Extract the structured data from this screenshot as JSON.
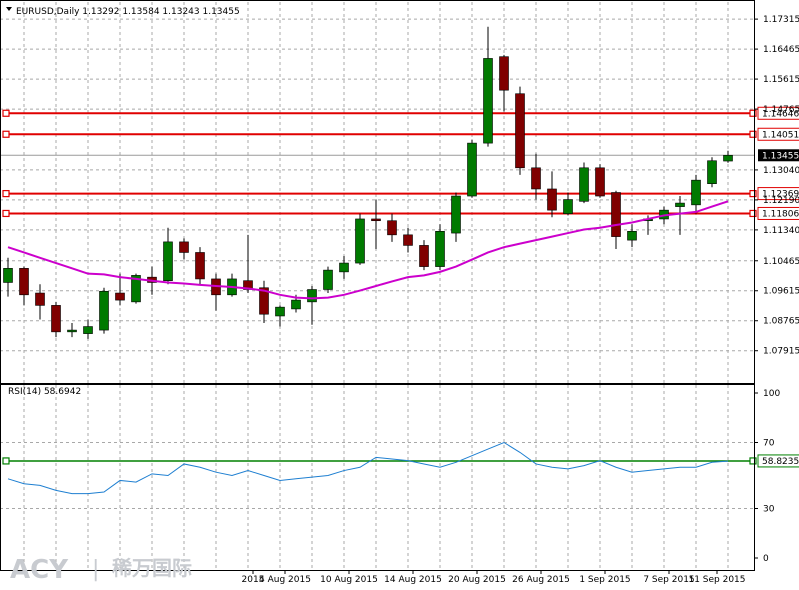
{
  "header": {
    "title": "EURUSD,Daily  1.13292 1.13584 1.13243 1.13455"
  },
  "logo": {
    "brand": "ACY",
    "separator": "|",
    "chinese": "稀万国际"
  },
  "colors": {
    "bull": "#007a00",
    "bear": "#800000",
    "ma": "#cc00cc",
    "rsi": "#1e7fd1",
    "level": "#e00000",
    "rsi_level": "#008000",
    "grid": "#a8a8a8"
  },
  "chart_data": [
    {
      "type": "candlestick",
      "symbol": "EURUSD",
      "timeframe": "Daily",
      "ohlc_header": {
        "open": 1.13292,
        "high": 1.13584,
        "low": 1.13243,
        "close": 1.13455
      },
      "ylim": [
        1.07,
        1.178
      ],
      "y_ticks": [
        "1.17315",
        "1.16465",
        "1.15615",
        "1.14765",
        "1.13040",
        "1.12190",
        "1.11340",
        "1.10465",
        "1.09615",
        "1.08765",
        "1.07915"
      ],
      "x_ticks": [
        "31 Jul 2015",
        "4 Aug 2015",
        "10 Aug 2015",
        "14 Aug 2015",
        "20 Aug 2015",
        "26 Aug 2015",
        "1 Sep 2015",
        "7 Sep 2015",
        "11 Sep 2015"
      ],
      "x_tick_labels_shown": [
        "2015",
        "4 Aug 2015",
        "10 Aug 2015",
        "14 Aug 2015",
        "20 Aug 2015",
        "26 Aug 2015",
        "1 Sep 2015",
        "7 Sep 2015",
        "11 Sep 2015"
      ],
      "x_tick_bar_index": [
        15,
        17,
        21,
        25,
        29,
        33,
        37,
        41,
        44
      ],
      "candles": [
        {
          "o": 1.0985,
          "h": 1.1055,
          "l": 1.0945,
          "c": 1.1025
        },
        {
          "o": 1.1025,
          "h": 1.103,
          "l": 1.092,
          "c": 1.095
        },
        {
          "o": 1.0955,
          "h": 1.098,
          "l": 1.088,
          "c": 1.092
        },
        {
          "o": 1.092,
          "h": 1.093,
          "l": 1.083,
          "c": 1.0845
        },
        {
          "o": 1.0845,
          "h": 1.087,
          "l": 1.083,
          "c": 1.085
        },
        {
          "o": 1.084,
          "h": 1.088,
          "l": 1.0825,
          "c": 1.086
        },
        {
          "o": 1.085,
          "h": 1.097,
          "l": 1.084,
          "c": 1.096
        },
        {
          "o": 1.0955,
          "h": 1.101,
          "l": 1.092,
          "c": 1.0935
        },
        {
          "o": 1.093,
          "h": 1.101,
          "l": 1.0925,
          "c": 1.1005
        },
        {
          "o": 1.1,
          "h": 1.103,
          "l": 1.095,
          "c": 1.0985
        },
        {
          "o": 1.099,
          "h": 1.114,
          "l": 1.098,
          "c": 1.11
        },
        {
          "o": 1.11,
          "h": 1.111,
          "l": 1.105,
          "c": 1.107
        },
        {
          "o": 1.107,
          "h": 1.1085,
          "l": 1.098,
          "c": 1.0995
        },
        {
          "o": 1.0995,
          "h": 1.101,
          "l": 1.0905,
          "c": 1.095
        },
        {
          "o": 1.095,
          "h": 1.101,
          "l": 1.0945,
          "c": 1.0995
        },
        {
          "o": 1.099,
          "h": 1.112,
          "l": 1.0955,
          "c": 1.0965
        },
        {
          "o": 1.097,
          "h": 1.099,
          "l": 1.087,
          "c": 1.0895
        },
        {
          "o": 1.089,
          "h": 1.092,
          "l": 1.086,
          "c": 1.0915
        },
        {
          "o": 1.091,
          "h": 1.095,
          "l": 1.09,
          "c": 1.0935
        },
        {
          "o": 1.093,
          "h": 1.0975,
          "l": 1.0865,
          "c": 1.0965
        },
        {
          "o": 1.0965,
          "h": 1.103,
          "l": 1.0955,
          "c": 1.102
        },
        {
          "o": 1.1015,
          "h": 1.106,
          "l": 1.0995,
          "c": 1.104
        },
        {
          "o": 1.104,
          "h": 1.118,
          "l": 1.1035,
          "c": 1.1165
        },
        {
          "o": 1.1165,
          "h": 1.122,
          "l": 1.108,
          "c": 1.116
        },
        {
          "o": 1.116,
          "h": 1.118,
          "l": 1.11,
          "c": 1.112
        },
        {
          "o": 1.112,
          "h": 1.114,
          "l": 1.107,
          "c": 1.109
        },
        {
          "o": 1.109,
          "h": 1.1105,
          "l": 1.102,
          "c": 1.103
        },
        {
          "o": 1.103,
          "h": 1.115,
          "l": 1.102,
          "c": 1.113
        },
        {
          "o": 1.1125,
          "h": 1.124,
          "l": 1.11,
          "c": 1.123
        },
        {
          "o": 1.123,
          "h": 1.139,
          "l": 1.1225,
          "c": 1.138
        },
        {
          "o": 1.138,
          "h": 1.171,
          "l": 1.137,
          "c": 1.162
        },
        {
          "o": 1.1625,
          "h": 1.163,
          "l": 1.147,
          "c": 1.153
        },
        {
          "o": 1.152,
          "h": 1.154,
          "l": 1.129,
          "c": 1.131
        },
        {
          "o": 1.131,
          "h": 1.135,
          "l": 1.122,
          "c": 1.125
        },
        {
          "o": 1.125,
          "h": 1.13,
          "l": 1.117,
          "c": 1.119
        },
        {
          "o": 1.118,
          "h": 1.124,
          "l": 1.1175,
          "c": 1.122
        },
        {
          "o": 1.1215,
          "h": 1.1325,
          "l": 1.121,
          "c": 1.131
        },
        {
          "o": 1.131,
          "h": 1.132,
          "l": 1.1225,
          "c": 1.123
        },
        {
          "o": 1.124,
          "h": 1.1245,
          "l": 1.108,
          "c": 1.1115
        },
        {
          "o": 1.1105,
          "h": 1.115,
          "l": 1.1085,
          "c": 1.113
        },
        {
          "o": 1.116,
          "h": 1.1175,
          "l": 1.112,
          "c": 1.1165
        },
        {
          "o": 1.1165,
          "h": 1.12,
          "l": 1.115,
          "c": 1.119
        },
        {
          "o": 1.12,
          "h": 1.123,
          "l": 1.112,
          "c": 1.121
        },
        {
          "o": 1.1205,
          "h": 1.129,
          "l": 1.118,
          "c": 1.1275
        },
        {
          "o": 1.1265,
          "h": 1.134,
          "l": 1.1255,
          "c": 1.133
        },
        {
          "o": 1.13292,
          "h": 1.13584,
          "l": 1.13243,
          "c": 1.13455
        }
      ],
      "moving_average": [
        1.1085,
        1.107,
        1.1055,
        1.104,
        1.1025,
        1.101,
        1.1008,
        1.1,
        1.0995,
        1.099,
        1.0985,
        1.0982,
        1.0978,
        1.0975,
        1.0972,
        1.0968,
        1.0962,
        1.095,
        1.0942,
        1.094,
        1.0942,
        1.095,
        1.0962,
        1.0975,
        1.0988,
        1.1,
        1.1005,
        1.1015,
        1.103,
        1.105,
        1.107,
        1.1085,
        1.1095,
        1.1105,
        1.1115,
        1.1125,
        1.1135,
        1.114,
        1.1148,
        1.1155,
        1.1165,
        1.1175,
        1.118,
        1.1185,
        1.12,
        1.1215
      ],
      "levels": [
        {
          "value": 1.14646,
          "label": "1.14646"
        },
        {
          "value": 1.14051,
          "label": "1.14051"
        },
        {
          "value": 1.12369,
          "label": "1.12369"
        },
        {
          "value": 1.11806,
          "label": "1.11806"
        }
      ],
      "current_price": {
        "value": 1.13455,
        "label": "1.13455"
      }
    },
    {
      "type": "line",
      "indicator": "RSI(14)",
      "title": "RSI(14) 58.6942",
      "ylim": [
        0,
        100
      ],
      "y_ticks": [
        "100",
        "70",
        "30",
        "0"
      ],
      "values": [
        48,
        45,
        44,
        41,
        39,
        39,
        40,
        47,
        46,
        51,
        50,
        57,
        55,
        52,
        50,
        53,
        50,
        47,
        48,
        49,
        50,
        53,
        55,
        61,
        60,
        59,
        57,
        55,
        58,
        62,
        66,
        70,
        64,
        57,
        55,
        54,
        56,
        59,
        55,
        52,
        53,
        54,
        55,
        55,
        58,
        58.69
      ],
      "level": {
        "value": 58.8235,
        "label": "58.8235"
      }
    }
  ]
}
